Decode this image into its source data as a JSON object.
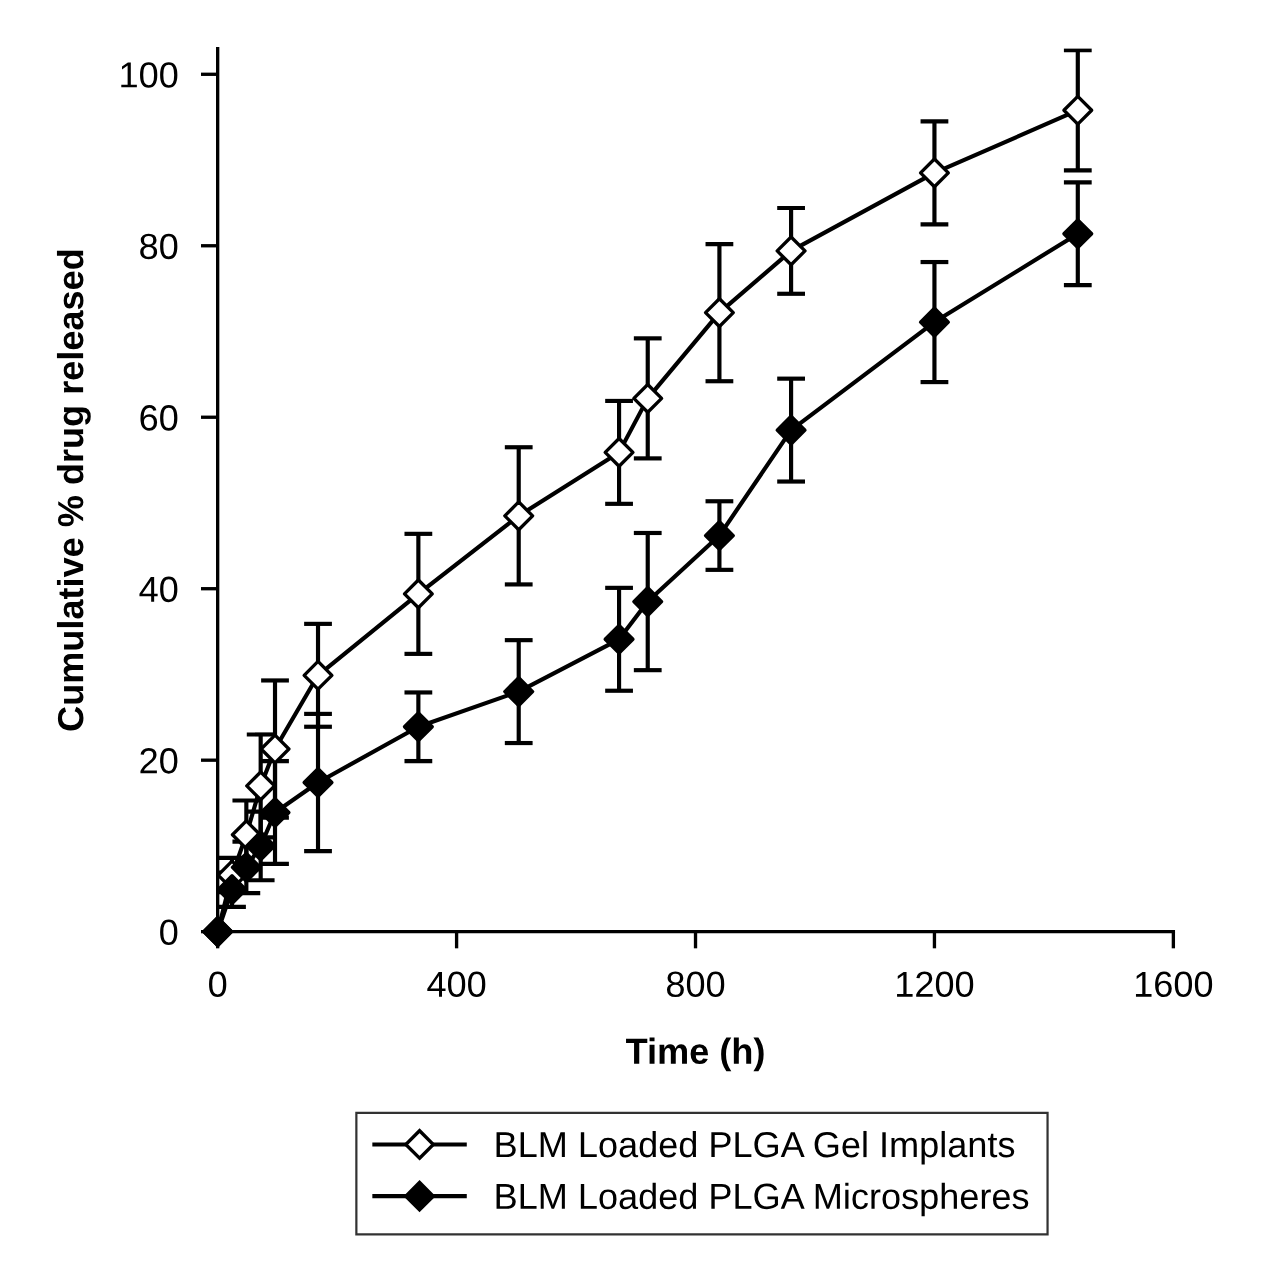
{
  "chart_data": {
    "type": "line",
    "xlabel": "Time (h)",
    "ylabel": "Cumulative % drug released",
    "xlim": [
      0,
      1600
    ],
    "xticks": [
      0,
      400,
      800,
      1200,
      1600
    ],
    "ylim": [
      0,
      103
    ],
    "yticks": [
      0,
      20,
      40,
      60,
      80,
      100
    ],
    "grid": false,
    "legend": "bottom",
    "marker": "diamond",
    "line_style": "solid",
    "series": [
      {
        "name": "BLM Loaded PLGA Gel Implants",
        "color": "#000000",
        "colors": [
          "#ffffff",
          "#ffffff",
          "#ffffff",
          "#ffffff",
          "#ffffff",
          "#ffffff",
          "#ffffff",
          "#ffffff",
          "#ffffff",
          "#ffffff",
          "#ffffff",
          "#ffffff",
          "#ffffff",
          "#ffffff"
        ],
        "x": [
          0,
          24,
          48,
          72,
          96,
          168,
          336,
          504,
          672,
          720,
          840,
          960,
          1200,
          1440
        ],
        "values": [
          0,
          6.6,
          11.3,
          17,
          21.3,
          29.9,
          39.4,
          48.5,
          55.9,
          62.2,
          72.2,
          79.4,
          88.5,
          95.8
        ],
        "errors": [
          0,
          2,
          4,
          6,
          8,
          6,
          7,
          8,
          6,
          7,
          8,
          5,
          6,
          7
        ]
      },
      {
        "name": "BLM Loaded PLGA Microspheres",
        "color": "#000000",
        "x": [
          0,
          24,
          48,
          72,
          96,
          168,
          336,
          504,
          672,
          720,
          840,
          960,
          1200,
          1440
        ],
        "values": [
          0,
          4.9,
          7.5,
          10,
          13.9,
          17.4,
          23.9,
          28,
          34.1,
          38.5,
          46.2,
          58.5,
          71.1,
          81.4
        ],
        "errors": [
          0,
          2,
          3,
          4,
          6,
          8,
          4,
          6,
          6,
          8,
          4,
          6,
          7,
          6
        ]
      }
    ]
  }
}
